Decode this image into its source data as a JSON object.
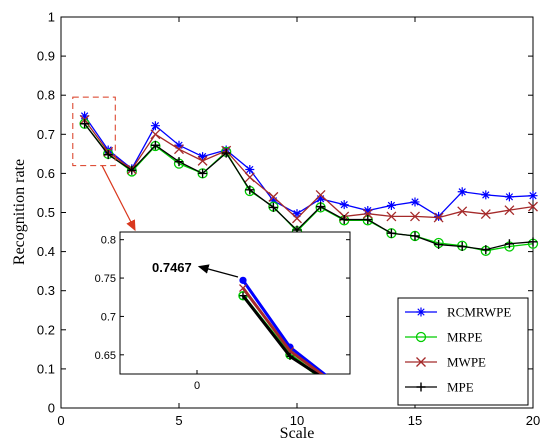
{
  "chart_data": {
    "type": "line",
    "xlabel": "Scale",
    "ylabel": "Recognition rate",
    "xlim": [
      0,
      20
    ],
    "ylim": [
      0,
      1
    ],
    "xticks": [
      0,
      5,
      10,
      15,
      20
    ],
    "yticks": [
      0,
      0.1,
      0.2,
      0.3,
      0.4,
      0.5,
      0.6,
      0.7,
      0.8,
      0.9,
      1
    ],
    "grid": false,
    "legend_position": "bottom-right",
    "x": [
      1,
      2,
      3,
      4,
      5,
      6,
      7,
      8,
      9,
      10,
      11,
      12,
      13,
      14,
      15,
      16,
      17,
      18,
      19,
      20
    ],
    "series": [
      {
        "name": "RCMRWPE",
        "color": "#0000ff",
        "marker": "asterisk",
        "values": [
          0.747,
          0.66,
          0.612,
          0.722,
          0.672,
          0.643,
          0.66,
          0.61,
          0.53,
          0.497,
          0.535,
          0.52,
          0.505,
          0.518,
          0.527,
          0.49,
          0.553,
          0.545,
          0.54,
          0.543
        ]
      },
      {
        "name": "MRPE",
        "color": "#00cc00",
        "marker": "circle",
        "values": [
          0.727,
          0.65,
          0.605,
          0.67,
          0.625,
          0.6,
          0.655,
          0.555,
          0.515,
          0.452,
          0.513,
          0.48,
          0.48,
          0.447,
          0.44,
          0.422,
          0.415,
          0.402,
          0.413,
          0.42
        ]
      },
      {
        "name": "MWPE",
        "color": "#a52a2a",
        "marker": "x",
        "values": [
          0.737,
          0.655,
          0.61,
          0.7,
          0.662,
          0.632,
          0.658,
          0.59,
          0.54,
          0.485,
          0.545,
          0.49,
          0.497,
          0.49,
          0.49,
          0.487,
          0.503,
          0.496,
          0.506,
          0.515
        ]
      },
      {
        "name": "MPE",
        "color": "#000000",
        "marker": "plus",
        "values": [
          0.727,
          0.648,
          0.608,
          0.672,
          0.63,
          0.6,
          0.652,
          0.558,
          0.513,
          0.455,
          0.515,
          0.482,
          0.482,
          0.447,
          0.44,
          0.418,
          0.413,
          0.405,
          0.42,
          0.425
        ]
      }
    ],
    "zoom_box": {
      "x": [
        0.5,
        2.3
      ],
      "y": [
        0.62,
        0.795
      ]
    },
    "inset": {
      "xtick_labels": [
        "0"
      ],
      "yticks": [
        0.65,
        0.7,
        0.75,
        0.8
      ],
      "ylim": [
        0.625,
        0.81
      ],
      "annotation": "0.7467"
    }
  }
}
